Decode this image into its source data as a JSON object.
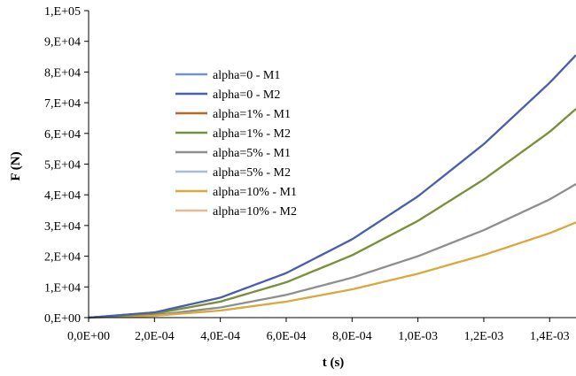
{
  "chart_data": {
    "type": "line",
    "xlabel": "t (s)",
    "ylabel": "F (N)",
    "xlim": [
      0,
      0.00148
    ],
    "ylim": [
      0,
      100000
    ],
    "x_tick_labels": [
      "0,0E+00",
      "2,0E-04",
      "4,0E-04",
      "6,0E-04",
      "8,0E-04",
      "1,0E-03",
      "1,2E-03",
      "1,4E-03"
    ],
    "y_tick_labels": [
      "0,E+00",
      "1,E+04",
      "2,E+04",
      "3,E+04",
      "4,E+04",
      "5,E+04",
      "6,E+04",
      "7,E+04",
      "8,E+04",
      "9,E+04",
      "1,E+05"
    ],
    "x_ticks": [
      0,
      0.0002,
      0.0004,
      0.0006,
      0.0008,
      0.001,
      0.0012,
      0.0014
    ],
    "y_ticks": [
      0,
      10000,
      20000,
      30000,
      40000,
      50000,
      60000,
      70000,
      80000,
      90000,
      100000
    ],
    "grid": false,
    "legend_position": "upper-left inside plot",
    "x": [
      0,
      0.0002,
      0.0004,
      0.0006,
      0.0008,
      0.001,
      0.0012,
      0.0014,
      0.00148
    ],
    "series": [
      {
        "name": "alpha=0 - M1",
        "color": "#7294C4",
        "values": [
          0,
          1700,
          6500,
          14500,
          25500,
          39500,
          56500,
          76500,
          85500
        ]
      },
      {
        "name": "alpha=0 - M2",
        "color": "#4A5EAA",
        "values": [
          0,
          1700,
          6500,
          14500,
          25500,
          39500,
          56500,
          76500,
          85500
        ]
      },
      {
        "name": "alpha=1% - M1",
        "color": "#B5652F",
        "values": [
          0,
          1300,
          5200,
          11500,
          20300,
          31500,
          45000,
          60500,
          68000
        ]
      },
      {
        "name": "alpha=1% - M2",
        "color": "#76923C",
        "values": [
          0,
          1300,
          5200,
          11500,
          20300,
          31500,
          45000,
          60500,
          68000
        ]
      },
      {
        "name": "alpha=5% - M1",
        "color": "#8E8E8E",
        "values": [
          0,
          800,
          3300,
          7400,
          13000,
          20000,
          28500,
          38500,
          43500
        ]
      },
      {
        "name": "alpha=5% - M2",
        "color": "#A8BCD8",
        "values": [
          0,
          800,
          3300,
          7400,
          13000,
          20000,
          28500,
          38500,
          43500
        ]
      },
      {
        "name": "alpha=10% - M1",
        "color": "#D9A93A",
        "values": [
          0,
          600,
          2300,
          5200,
          9200,
          14300,
          20400,
          27500,
          31000
        ]
      },
      {
        "name": "alpha=10% - M2",
        "color": "#E8B98F",
        "values": [
          0,
          600,
          2300,
          5200,
          9200,
          14300,
          20400,
          27500,
          31000
        ]
      }
    ]
  }
}
